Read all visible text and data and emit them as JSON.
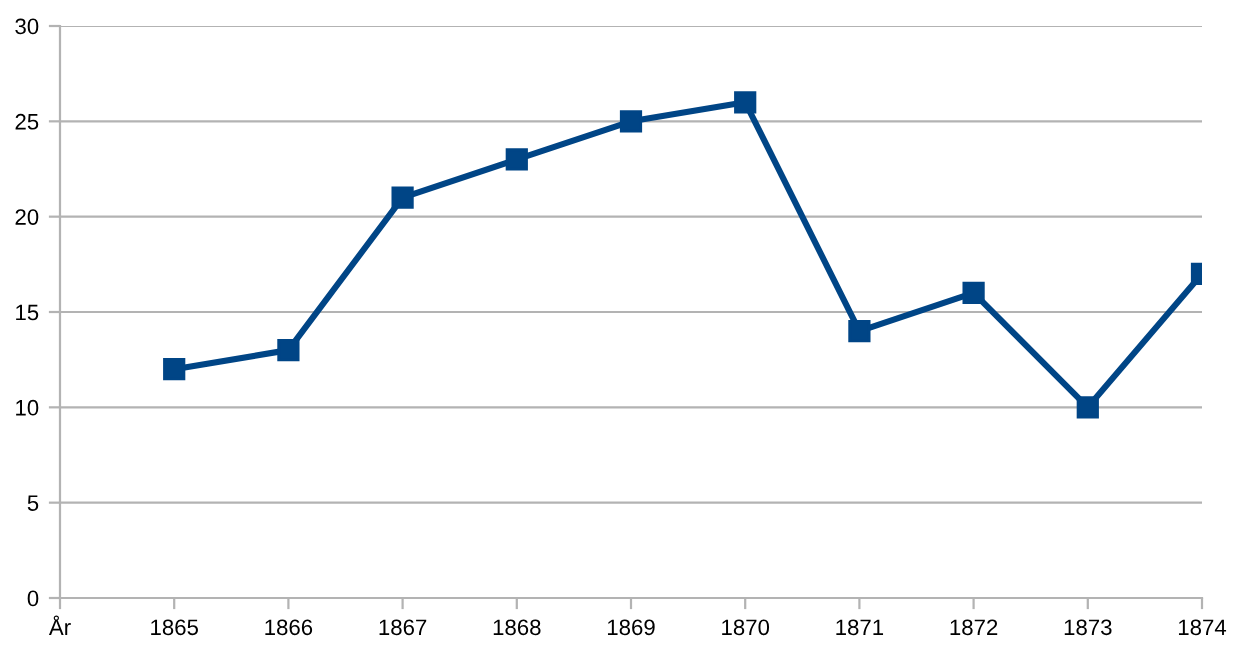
{
  "chart_data": {
    "type": "line",
    "categories": [
      "År",
      "1865",
      "1866",
      "1867",
      "1868",
      "1869",
      "1870",
      "1871",
      "1872",
      "1873",
      "1874"
    ],
    "series": [
      {
        "color": "#004586",
        "values": [
          null,
          12,
          13,
          21,
          23,
          25,
          26,
          14,
          16,
          10,
          17
        ]
      }
    ],
    "ylim": [
      0,
      30
    ],
    "yticks": [
      0,
      5,
      10,
      15,
      20,
      25,
      30
    ],
    "grid": "y",
    "marker": "square",
    "line_style": "solid",
    "legend": false
  }
}
